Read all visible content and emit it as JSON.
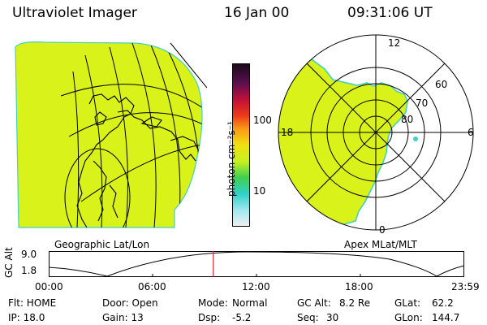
{
  "header": {
    "instrument": "Ultraviolet Imager",
    "date": "16 Jan 00",
    "time": "09:31:06 UT"
  },
  "colorbar": {
    "unit_label": "photon cm⁻²s⁻¹",
    "ticks": [
      "100",
      "10"
    ]
  },
  "left_panel": {
    "caption": "Geographic Lat/Lon"
  },
  "right_panel": {
    "caption": "Apex MLat/MLT",
    "mlt_labels": {
      "top": "12",
      "left": "18",
      "right": "6",
      "bottom": "0"
    },
    "lat_labels": [
      "60",
      "70",
      "80"
    ]
  },
  "altitude_plot": {
    "ylabel": "GC Alt",
    "y_top": "9.0",
    "y_bottom": "1.8",
    "time_ticks": [
      "00:00",
      "06:00",
      "12:00",
      "18:00",
      "23:59"
    ],
    "marker_fraction": 0.396,
    "colors": {
      "marker": "#e02020"
    }
  },
  "status": {
    "col1": {
      "flt": "Flt: HOME",
      "ip": "IP: 18.0"
    },
    "col2": {
      "door": "Door: Open",
      "gain": "Gain: 13"
    },
    "col3": {
      "mode_label": "Mode:",
      "mode": "Normal",
      "dsp_label": "Dsp:",
      "dsp": "-5.2"
    },
    "col4": {
      "alt_label": "GC Alt:",
      "alt": "8.2 Re",
      "seq_label": "Seq:",
      "seq": "30"
    },
    "col5": {
      "glat_label": "GLat:",
      "glat": "62.2",
      "glon_label": "GLon:",
      "glon": "144.7"
    }
  },
  "colors": {
    "aurora_fill": "#d9f21a",
    "rim": "#3fd1c9",
    "marker": "#e02020"
  }
}
